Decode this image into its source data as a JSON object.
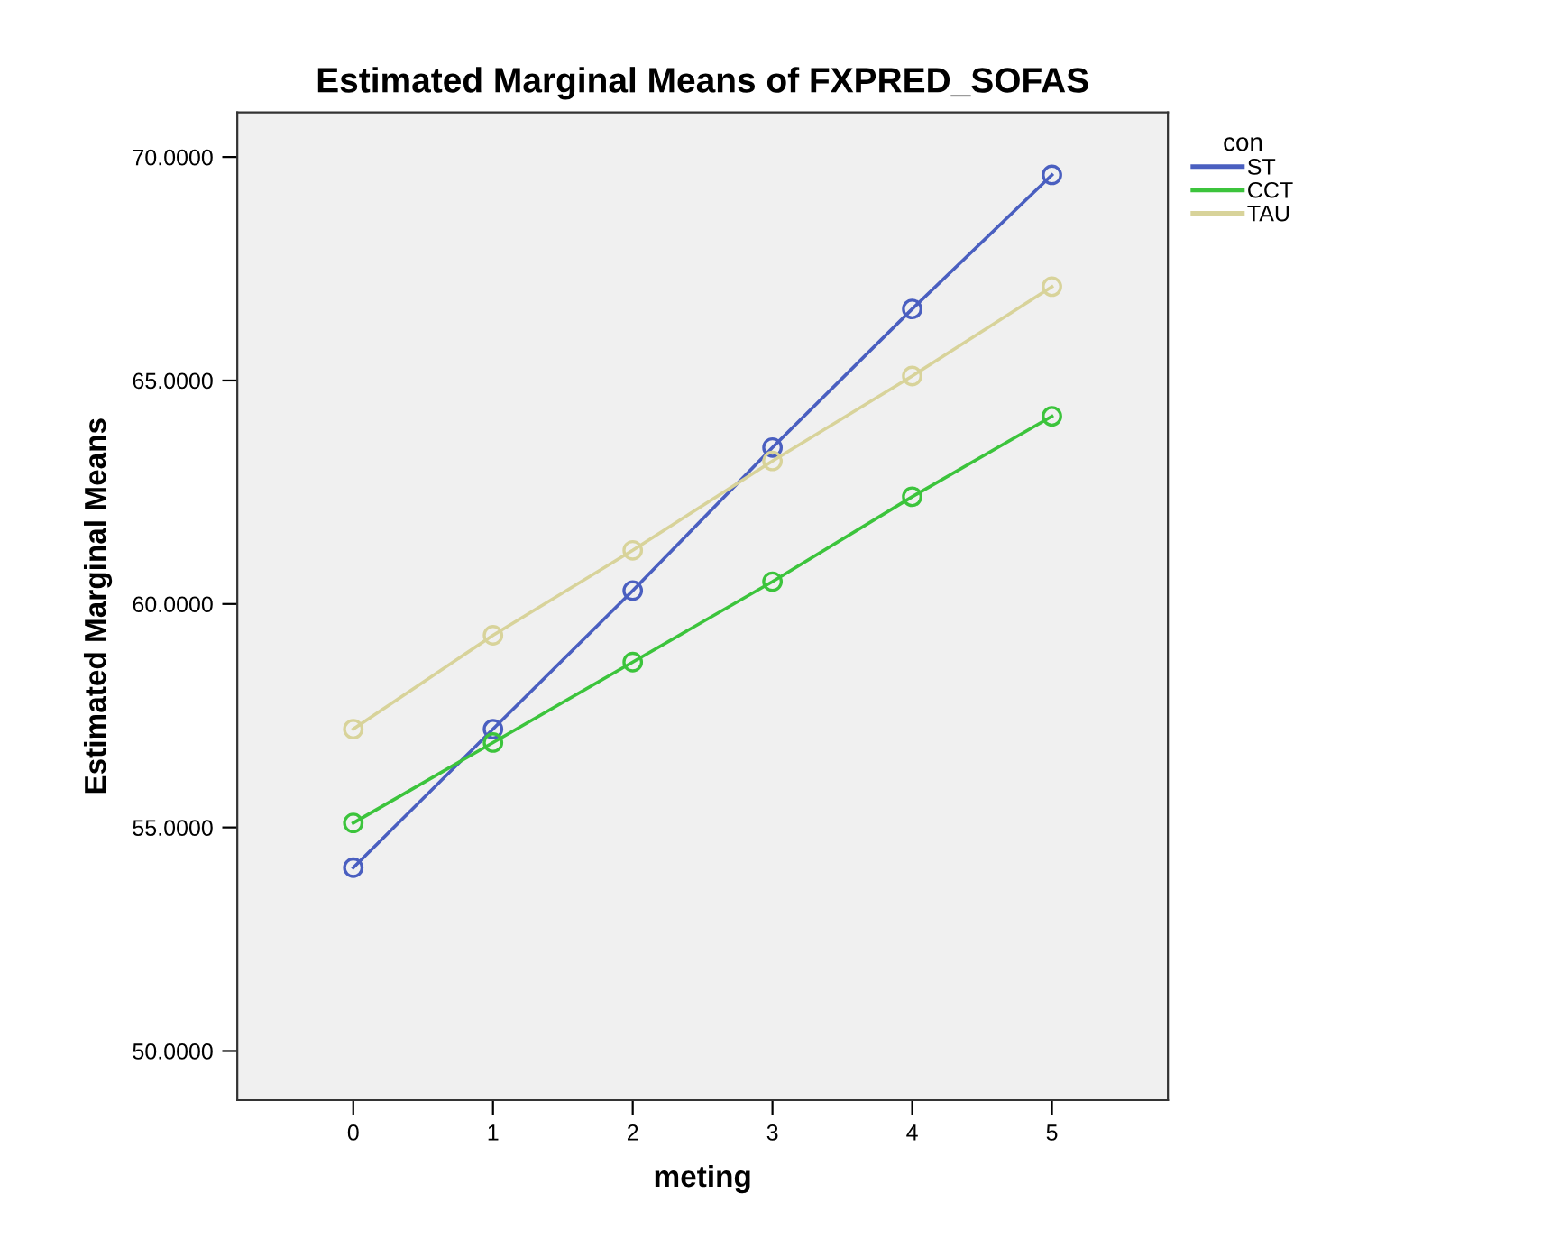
{
  "chart_data": {
    "type": "line",
    "title": "Estimated Marginal Means of FXPRED_SOFAS",
    "xlabel": "meting",
    "ylabel": "Estimated Marginal Means",
    "legend_title": "con",
    "legend": "top right",
    "marker": "circle",
    "line_style": "solid",
    "grid": false,
    "x": [
      0,
      1,
      2,
      3,
      4,
      5
    ],
    "xlim": [
      -0.83,
      5.83
    ],
    "xticks": [
      0,
      1,
      2,
      3,
      4,
      5
    ],
    "ylim": [
      48.9,
      71.0
    ],
    "yticks": [
      {
        "value": 50,
        "label": "50.0000"
      },
      {
        "value": 55,
        "label": "55.0000"
      },
      {
        "value": 60,
        "label": "60.0000"
      },
      {
        "value": 65,
        "label": "65.0000"
      },
      {
        "value": 70,
        "label": "70.0000"
      }
    ],
    "series": [
      {
        "name": "ST",
        "color": "#4a5fc0",
        "values": [
          54.1,
          57.2,
          60.3,
          63.5,
          66.6,
          69.6
        ]
      },
      {
        "name": "CCT",
        "color": "#3cc43c",
        "values": [
          55.1,
          56.9,
          58.7,
          60.5,
          62.4,
          64.2
        ]
      },
      {
        "name": "TAU",
        "color": "#d8d39a",
        "values": [
          57.2,
          59.3,
          61.2,
          63.2,
          65.1,
          67.1
        ]
      }
    ]
  }
}
